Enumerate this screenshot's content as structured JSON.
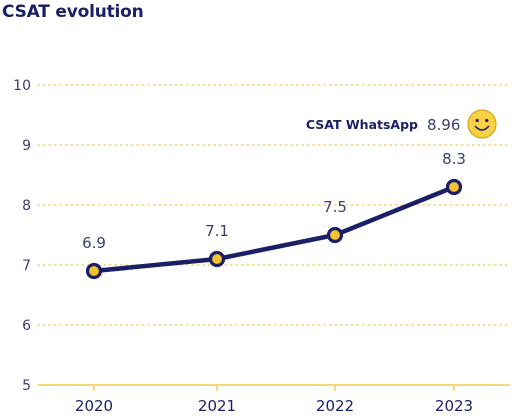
{
  "chart_data": {
    "type": "line",
    "title": "CSAT evolution",
    "x": [
      "2020",
      "2021",
      "2022",
      "2023"
    ],
    "yticks": [
      "5",
      "6",
      "7",
      "8",
      "9",
      "10"
    ],
    "ylim": [
      5,
      10
    ],
    "grid": true,
    "series": [
      {
        "values": [
          6.9,
          7.1,
          7.5,
          8.3
        ],
        "labels": [
          "6.9",
          "7.1",
          "7.5",
          "8.3"
        ]
      }
    ],
    "annotation": {
      "label": "CSAT WhatsApp",
      "value": "8.96",
      "icon": "smiley-face-icon"
    },
    "colors": {
      "line": "#1a1f66",
      "marker_fill": "#f2c230",
      "grid": "#f2c94c",
      "text": "#3a3f6e"
    }
  }
}
